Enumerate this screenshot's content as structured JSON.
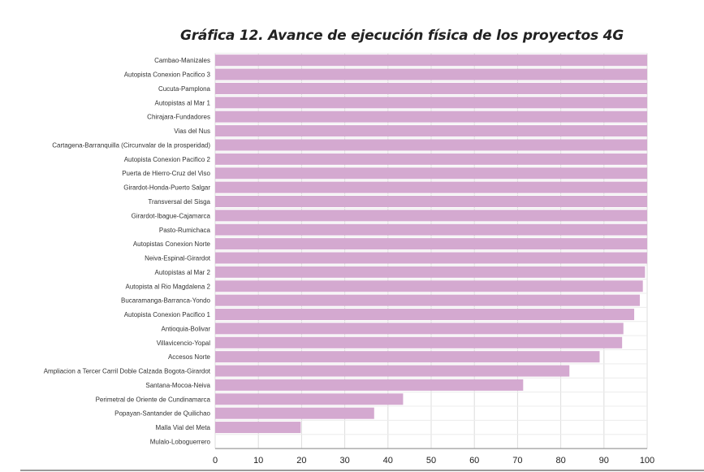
{
  "chart_data": {
    "type": "bar",
    "orientation": "horizontal",
    "title": "Gráfica 12. Avance de ejecución física de los proyectos 4G",
    "xlabel": "",
    "ylabel": "",
    "xlim": [
      0,
      100
    ],
    "xticks": [
      "0",
      "10",
      "20",
      "30",
      "40",
      "50",
      "60",
      "70",
      "80",
      "90",
      "100"
    ],
    "grid": "vertical",
    "bar_color": "#d4a9d0",
    "categories": [
      "Cambao-Manizales",
      "Autopista Conexion Pacifico 3",
      "Cucuta-Pamplona",
      "Autopistas al Mar 1",
      "Chirajara-Fundadores",
      "Vias del Nus",
      "Cartagena-Barranquilla (Circunvalar de la prosperidad)",
      "Autopista Conexion Pacifico 2",
      "Puerta de Hierro-Cruz del Viso",
      "Girardot-Honda-Puerto Salgar",
      "Transversal del Sisga",
      "Girardot-Ibague-Cajamarca",
      "Pasto-Rumichaca",
      "Autopistas Conexion Norte",
      "Neiva-Espinal-Girardot",
      "Autopistas al Mar 2",
      "Autopista al Rio Magdalena 2",
      "Bucaramanga-Barranca-Yondo",
      "Autopista Conexion Pacifico 1",
      "Antioquia-Bolivar",
      "Villavicencio-Yopal",
      "Accesos Norte",
      "Ampliacion a Tercer Carril Doble Calzada Bogota-Girardot",
      "Santana-Mocoa-Neiva",
      "Perimetral de Oriente de Cundinamarca",
      "Popayan-Santander de Quilichao",
      "Malla Vial del Meta",
      "Mulalo-Loboguerrero"
    ],
    "values": [
      100,
      100,
      100,
      100,
      100,
      100,
      100,
      100,
      100,
      100,
      100,
      100,
      100,
      100,
      100,
      99.5,
      99,
      98.3,
      97,
      94.5,
      94.2,
      89,
      82,
      71.3,
      43.5,
      36.8,
      19.8,
      0
    ]
  }
}
